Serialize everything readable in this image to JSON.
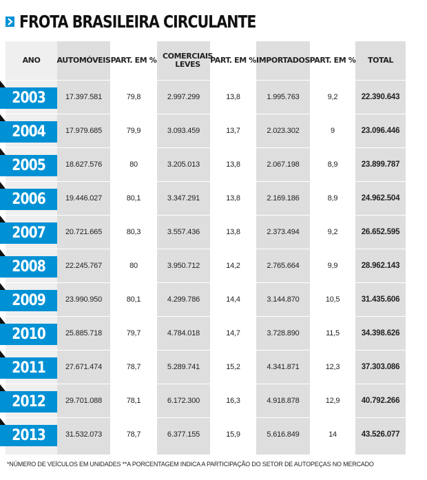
{
  "title": "FROTA BRASILEIRA CIRCULANTE",
  "title_icon": "chevron-right-icon",
  "colors": {
    "accent": "#0091d5",
    "band_gray": "#dedede",
    "band_light": "#efefef"
  },
  "table": {
    "columns": [
      "ANO",
      "AUTOMÓVEIS",
      "PART. EM %",
      "COMERCIAIS LEVES",
      "PART. EM %",
      "IMPORTADOS",
      "PART. EM %",
      "TOTAL"
    ],
    "columns_display": [
      "ANO",
      "AUTOMÓVEIS",
      "PART. EM %",
      "COMERCIAIS\nLEVES",
      "PART. EM %",
      "IMPORTADOS",
      "PART. EM %",
      "TOTAL"
    ],
    "rows": [
      {
        "ano": "2003",
        "automoveis": "17.397.581",
        "part_auto": "79,8",
        "comerciais": "2.997.299",
        "part_com": "13,8",
        "importados": "1.995.763",
        "part_imp": "9,2",
        "total": "22.390.643"
      },
      {
        "ano": "2004",
        "automoveis": "17.979.685",
        "part_auto": "79,9",
        "comerciais": "3.093.459",
        "part_com": "13,7",
        "importados": "2.023.302",
        "part_imp": "9",
        "total": "23.096.446"
      },
      {
        "ano": "2005",
        "automoveis": "18.627.576",
        "part_auto": "80",
        "comerciais": "3.205.013",
        "part_com": "13,8",
        "importados": "2.067.198",
        "part_imp": "8,9",
        "total": "23.899.787"
      },
      {
        "ano": "2006",
        "automoveis": "19.446.027",
        "part_auto": "80,1",
        "comerciais": "3.347.291",
        "part_com": "13,8",
        "importados": "2.169.186",
        "part_imp": "8,9",
        "total": "24.962.504"
      },
      {
        "ano": "2007",
        "automoveis": "20.721.665",
        "part_auto": "80,3",
        "comerciais": "3.557.436",
        "part_com": "13,8",
        "importados": "2.373.494",
        "part_imp": "9,2",
        "total": "26.652.595"
      },
      {
        "ano": "2008",
        "automoveis": "22.245.767",
        "part_auto": "80",
        "comerciais": "3.950.712",
        "part_com": "14,2",
        "importados": "2.765.664",
        "part_imp": "9,9",
        "total": "28.962.143"
      },
      {
        "ano": "2009",
        "automoveis": "23.990.950",
        "part_auto": "80,1",
        "comerciais": "4.299.786",
        "part_com": "14,4",
        "importados": "3.144.870",
        "part_imp": "10,5",
        "total": "31.435.606"
      },
      {
        "ano": "2010",
        "automoveis": "25.885.718",
        "part_auto": "79,7",
        "comerciais": "4.784.018",
        "part_com": "14,7",
        "importados": "3.728.890",
        "part_imp": "11,5",
        "total": "34.398.626"
      },
      {
        "ano": "2011",
        "automoveis": "27.671.474",
        "part_auto": "78,7",
        "comerciais": "5.289.741",
        "part_com": "15,2",
        "importados": "4.341.871",
        "part_imp": "12,3",
        "total": "37.303.086"
      },
      {
        "ano": "2012",
        "automoveis": "29.701.088",
        "part_auto": "78,1",
        "comerciais": "6.172.300",
        "part_com": "16,3",
        "importados": "4.918.878",
        "part_imp": "12,9",
        "total": "40.792.266"
      },
      {
        "ano": "2013",
        "automoveis": "31.532.073",
        "part_auto": "78,7",
        "comerciais": "6.377.155",
        "part_com": "15,9",
        "importados": "5.616.849",
        "part_imp": "14",
        "total": "43.526.077"
      }
    ]
  },
  "footnote": "*NÚMERO DE VEÍCULOS EM UNIDADES **A PORCENTAGEM INDICA A PARTICIPAÇÃO DO SETOR DE AUTOPEÇAS NO MERCADO"
}
